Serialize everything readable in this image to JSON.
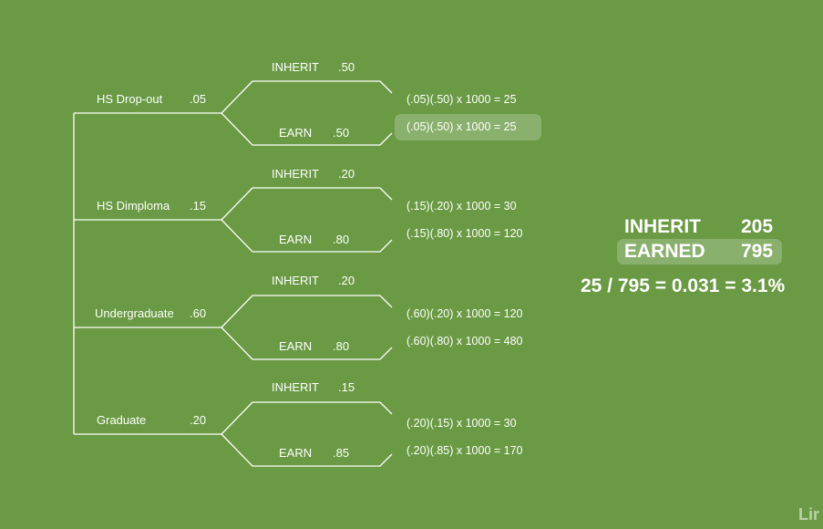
{
  "tree": {
    "branches": [
      {
        "name": "HS Drop-out",
        "p": ".05",
        "inherit_label": "INHERIT",
        "inherit_p": ".50",
        "earn_label": "EARN",
        "earn_p": ".50",
        "inherit_calc": "(.05)(.50) x 1000 = 25",
        "earn_calc": "(.05)(.50) x 1000 = 25"
      },
      {
        "name": "HS Dimploma",
        "p": ".15",
        "inherit_label": "INHERIT",
        "inherit_p": ".20",
        "earn_label": "EARN",
        "earn_p": ".80",
        "inherit_calc": "(.15)(.20) x 1000 = 30",
        "earn_calc": "(.15)(.80) x 1000 = 120"
      },
      {
        "name": "Undergraduate",
        "p": ".60",
        "inherit_label": "INHERIT",
        "inherit_p": ".20",
        "earn_label": "EARN",
        "earn_p": ".80",
        "inherit_calc": "(.60)(.20) x 1000 = 120",
        "earn_calc": "(.60)(.80) x 1000 = 480"
      },
      {
        "name": "Graduate",
        "p": ".20",
        "inherit_label": "INHERIT",
        "inherit_p": ".15",
        "earn_label": "EARN",
        "earn_p": ".85",
        "inherit_calc": "(.20)(.15) x 1000 = 30",
        "earn_calc": "(.20)(.85) x 1000 = 170"
      }
    ]
  },
  "summary": {
    "inherit_label": "INHERIT",
    "inherit_value": "205",
    "earned_label": "EARNED",
    "earned_value": "795",
    "formula": "25 / 795 = 0.031 = 3.1%"
  },
  "watermark": "Lir"
}
